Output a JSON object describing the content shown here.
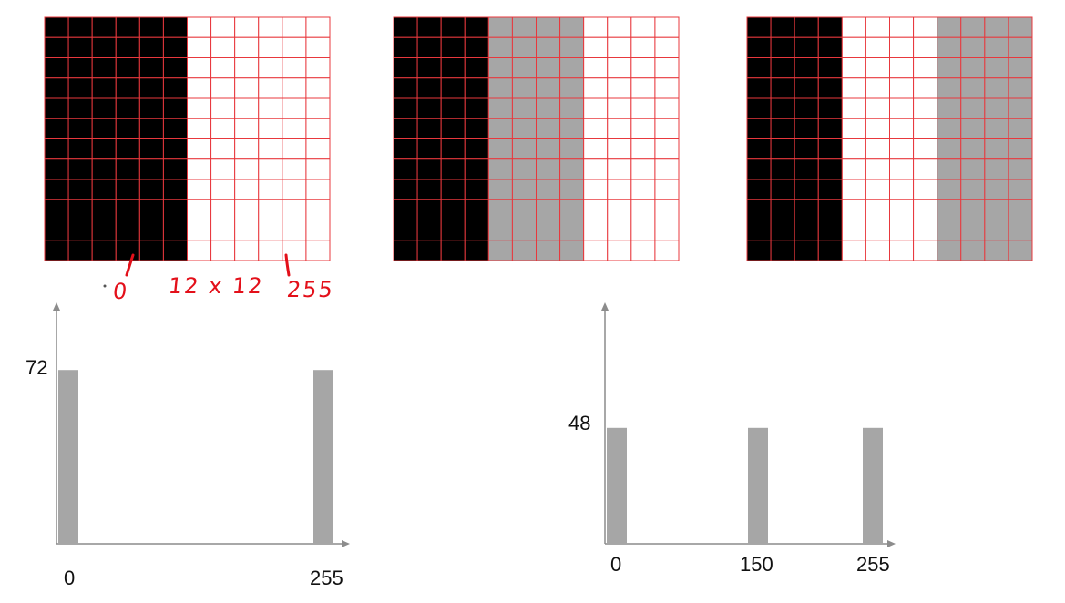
{
  "grids": [
    {
      "name": "binary",
      "rows": 12,
      "columns": 12,
      "column_fill": [
        "black",
        "black",
        "black",
        "black",
        "black",
        "black",
        "white",
        "white",
        "white",
        "white",
        "white",
        "white"
      ]
    },
    {
      "name": "three-level-a",
      "rows": 12,
      "columns": 12,
      "column_fill": [
        "black",
        "black",
        "black",
        "black",
        "gray",
        "gray",
        "gray",
        "gray",
        "white",
        "white",
        "white",
        "white"
      ]
    },
    {
      "name": "three-level-b",
      "rows": 12,
      "columns": 12,
      "column_fill": [
        "black",
        "black",
        "black",
        "black",
        "white",
        "white",
        "white",
        "white",
        "gray",
        "gray",
        "gray",
        "gray"
      ]
    }
  ],
  "colors": {
    "grid_line": "#e8383d",
    "black": "#000000",
    "gray": "#a6a6a6",
    "white": "#ffffff",
    "bar": "#a6a6a6",
    "axis": "#8c8c8c",
    "ink": "#e3101a"
  },
  "annotations": {
    "zero": "0",
    "size": "12 x 12",
    "max": "255"
  },
  "chart_data": [
    {
      "type": "bar",
      "categories": [
        "0",
        "255"
      ],
      "values": [
        72,
        72
      ],
      "title": "",
      "xlabel": "",
      "ylabel": "",
      "y_tick_labels": [
        "72"
      ],
      "ylim": [
        0,
        100
      ]
    },
    {
      "type": "bar",
      "categories": [
        "0",
        "150",
        "255"
      ],
      "values": [
        48,
        48,
        48
      ],
      "title": "",
      "xlabel": "",
      "ylabel": "",
      "y_tick_labels": [
        "48"
      ],
      "ylim": [
        0,
        100
      ]
    }
  ]
}
